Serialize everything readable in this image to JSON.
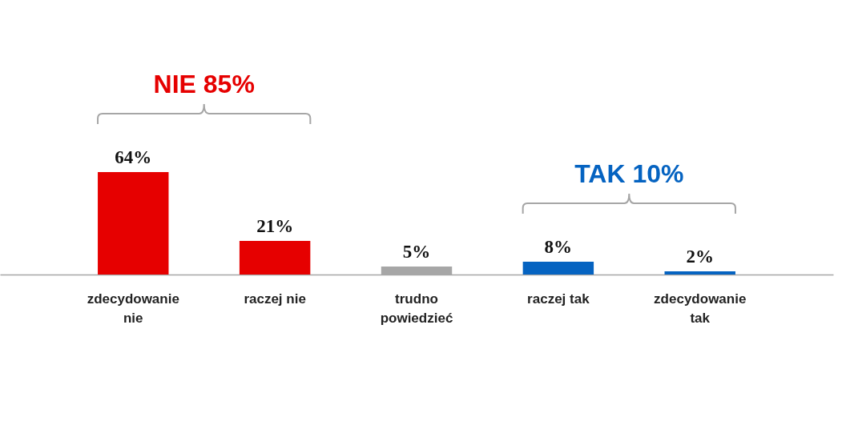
{
  "chart_data": {
    "type": "bar",
    "categories": [
      "zdecydowanie nie",
      "raczej nie",
      "trudno powiedzieć",
      "raczej tak",
      "zdecydowanie tak"
    ],
    "values": [
      64,
      21,
      5,
      8,
      2
    ],
    "colors": [
      "#e60000",
      "#e60000",
      "#a6a6a6",
      "#0563c1",
      "#0563c1"
    ],
    "value_labels": [
      "64%",
      "21%",
      "5%",
      "8%",
      "2%"
    ],
    "annotations": [
      "NIE 85%",
      "TAK 10%"
    ]
  }
}
